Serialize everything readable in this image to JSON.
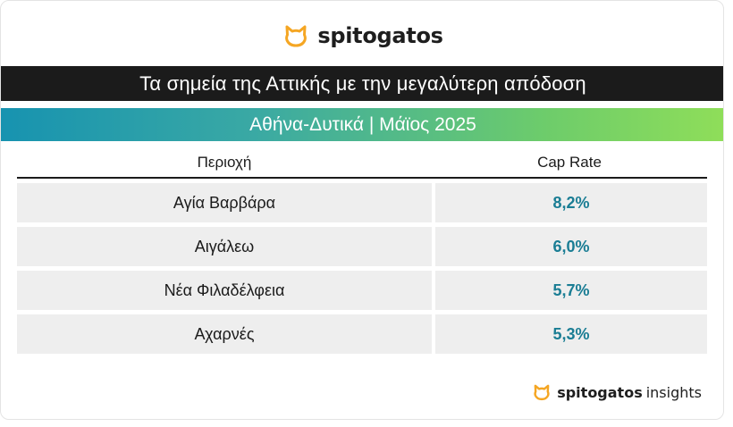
{
  "header": {
    "logo_text": "spitogatos",
    "logo_icon": "cat-head-icon",
    "brand_color": "#f5a623"
  },
  "title": "Τα σημεία της Αττικής με την μεγαλύτερη απόδοση",
  "subtitle": "Αθήνα-Δυτικά | Μάϊος 2025",
  "table": {
    "columns": [
      "Περιοχή",
      "Cap Rate"
    ],
    "rows": [
      {
        "area": "Αγία Βαρβάρα",
        "cap_rate": "8,2%"
      },
      {
        "area": "Αιγάλεω",
        "cap_rate": "6,0%"
      },
      {
        "area": "Νέα Φιλαδέλφεια",
        "cap_rate": "5,7%"
      },
      {
        "area": "Αχαρνές",
        "cap_rate": "5,3%"
      }
    ],
    "value_color": "#1a7d94"
  },
  "footer": {
    "brand": "spitogatos",
    "suffix": "insights"
  }
}
